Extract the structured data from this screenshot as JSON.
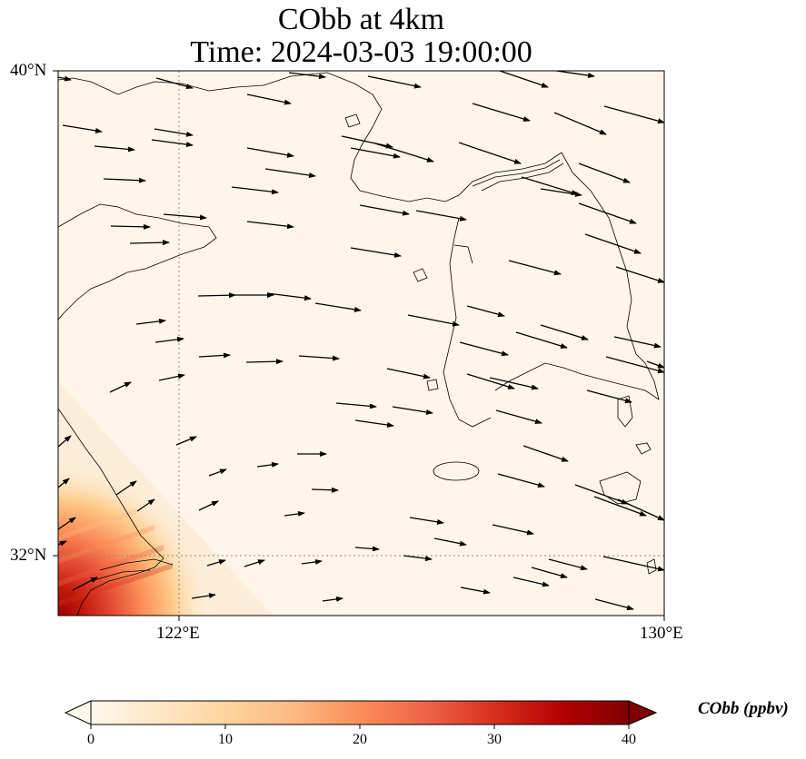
{
  "title": {
    "line1": "CObb at 4km",
    "line2": "Time: 2024-03-03 19:00:00"
  },
  "map": {
    "type": "filled-contour-with-wind-vectors",
    "variable": "CObb",
    "level": "4km",
    "extent": {
      "lon_min": 120,
      "lon_max": 130,
      "lat_min": 31,
      "lat_max": 40
    },
    "gridlines": {
      "style": "dotted",
      "color": "#8c8c8c"
    },
    "lat_ticks": [
      {
        "value": 40,
        "label": "40°N"
      },
      {
        "value": 32,
        "label": "32°N"
      }
    ],
    "lon_ticks": [
      {
        "value": 122,
        "label": "122°E"
      },
      {
        "value": 130,
        "label": "130°E"
      }
    ],
    "field_description": "Near-zero over most of domain; elevated values in the southwest corner near the Yangtze estuary, up to roughly 30 ppbv",
    "hotspot": {
      "corner": "south-west",
      "max_value": 30
    }
  },
  "colorbar": {
    "label": "CObb (ppbv)",
    "min": 0,
    "max": 40,
    "ticks": [
      {
        "value": 0,
        "label": "0"
      },
      {
        "value": 10,
        "label": "10"
      },
      {
        "value": 20,
        "label": "20"
      },
      {
        "value": 30,
        "label": "30"
      },
      {
        "value": 40,
        "label": "40"
      }
    ],
    "extend": "both",
    "colormap": "OrRd",
    "colors": [
      "#fff7ec",
      "#fee8c8",
      "#fdd49e",
      "#fdbb84",
      "#fc8d59",
      "#ef6548",
      "#d7301f",
      "#b30000",
      "#7f0000"
    ]
  },
  "chart_data": {
    "type": "heatmap",
    "title": "CObb at 4km\nTime: 2024-03-03 19:00:00",
    "xlabel": "",
    "ylabel": "",
    "xlim": [
      120,
      130
    ],
    "ylim": [
      31,
      40
    ],
    "x_ticks": [
      "122°E",
      "130°E"
    ],
    "y_ticks": [
      "40°N",
      "32°N"
    ],
    "colorbar_label": "CObb (ppbv)",
    "colorbar_range": [
      0,
      40
    ],
    "wind_vectors_direction": "predominantly westerly to west-north-westerly flow (arrows pointing east / east-south-east)"
  }
}
